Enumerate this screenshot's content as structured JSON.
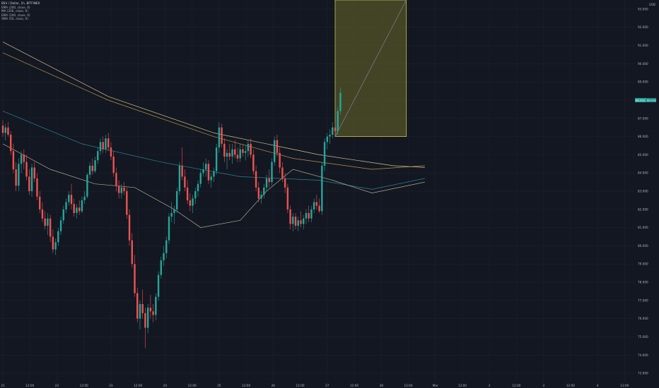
{
  "symbol_title": "BSV / Dollar, 1h, BITFINEX",
  "indicators": [
    "EMA (200, close, 0)",
    "MA (200, close, 0)",
    "EMA (100, close, 0)",
    "SMA (50, close, 0)"
  ],
  "currency": "USD",
  "price_tag_a": "88.002",
  "price_tag_b": "88.002",
  "colors": {
    "background": "#131722",
    "up": "#26a69a",
    "down": "#ef5350",
    "ema200": "#f2e1a0",
    "ma200": "#d4a84a",
    "ema100": "#2e9ba8",
    "sma50": "#c9c3a3",
    "box_fill": "#6b6a2a",
    "box_stroke": "#c7c24a"
  },
  "chart_data": {
    "type": "candlestick",
    "title": "",
    "xlabel": "",
    "ylabel": "",
    "ylim": [
      72.5,
      93.5
    ],
    "y_ticks": [
      "73.000",
      "74.000",
      "75.000",
      "76.000",
      "77.000",
      "78.000",
      "79.000",
      "80.000",
      "81.000",
      "82.000",
      "83.000",
      "84.000",
      "85.000",
      "86.000",
      "87.000",
      "88.000",
      "89.000",
      "90.000",
      "91.000",
      "92.000",
      "93.000"
    ],
    "x_ticks": [
      "21",
      "12:00",
      "22",
      "12:00",
      "23",
      "12:00",
      "24",
      "12:00",
      "25",
      "12:00",
      "26",
      "12:00",
      "27",
      "12:00",
      "28",
      "12:00",
      "Mar",
      "12:00",
      "2",
      "12:00",
      "3",
      "12:00",
      "4",
      "12:00"
    ],
    "grid": true,
    "candles": [
      [
        86.6,
        86.9,
        86.0,
        86.2
      ],
      [
        86.2,
        86.7,
        85.8,
        86.5
      ],
      [
        86.5,
        86.8,
        86.0,
        86.1
      ],
      [
        86.1,
        86.3,
        85.0,
        85.2
      ],
      [
        85.2,
        85.6,
        84.0,
        84.2
      ],
      [
        84.2,
        84.6,
        83.0,
        83.3
      ],
      [
        83.3,
        84.8,
        83.0,
        84.5
      ],
      [
        84.5,
        85.2,
        84.0,
        85.0
      ],
      [
        85.0,
        85.3,
        84.2,
        84.6
      ],
      [
        84.6,
        85.0,
        83.6,
        83.8
      ],
      [
        83.8,
        84.2,
        82.8,
        83.0
      ],
      [
        83.0,
        84.5,
        82.7,
        84.3
      ],
      [
        84.3,
        84.6,
        83.5,
        83.7
      ],
      [
        83.7,
        84.0,
        82.5,
        82.7
      ],
      [
        82.7,
        83.0,
        81.8,
        82.0
      ],
      [
        82.0,
        82.4,
        81.3,
        81.5
      ],
      [
        81.5,
        81.9,
        80.9,
        81.1
      ],
      [
        81.1,
        81.8,
        80.6,
        81.5
      ],
      [
        81.5,
        81.7,
        80.2,
        80.5
      ],
      [
        80.5,
        80.9,
        79.6,
        79.8
      ],
      [
        79.8,
        80.4,
        79.5,
        80.2
      ],
      [
        80.2,
        81.0,
        80.0,
        80.8
      ],
      [
        80.8,
        81.6,
        80.6,
        81.4
      ],
      [
        81.4,
        82.2,
        81.2,
        82.0
      ],
      [
        82.0,
        82.6,
        81.8,
        82.4
      ],
      [
        82.4,
        83.0,
        82.2,
        82.8
      ],
      [
        82.8,
        83.4,
        82.0,
        82.3
      ],
      [
        82.3,
        82.6,
        81.6,
        81.8
      ],
      [
        81.8,
        82.3,
        81.5,
        82.1
      ],
      [
        82.1,
        82.5,
        81.7,
        81.9
      ],
      [
        81.9,
        82.7,
        81.8,
        82.5
      ],
      [
        82.5,
        83.0,
        82.3,
        82.7
      ],
      [
        82.7,
        84.0,
        82.6,
        83.9
      ],
      [
        83.9,
        84.6,
        83.7,
        84.4
      ],
      [
        84.4,
        84.8,
        83.9,
        84.1
      ],
      [
        84.1,
        84.9,
        84.0,
        84.7
      ],
      [
        84.7,
        85.4,
        84.5,
        85.2
      ],
      [
        85.2,
        85.9,
        85.0,
        85.7
      ],
      [
        85.7,
        86.0,
        85.1,
        85.3
      ],
      [
        85.3,
        86.1,
        85.1,
        85.9
      ],
      [
        85.9,
        86.2,
        85.2,
        85.4
      ],
      [
        85.4,
        85.7,
        84.7,
        84.9
      ],
      [
        84.9,
        85.2,
        83.8,
        84.0
      ],
      [
        84.0,
        84.3,
        83.0,
        83.3
      ],
      [
        83.3,
        83.6,
        82.6,
        82.9
      ],
      [
        82.9,
        83.4,
        82.6,
        83.2
      ],
      [
        83.2,
        83.5,
        82.8,
        83.0
      ],
      [
        83.0,
        83.2,
        81.5,
        81.7
      ],
      [
        81.7,
        82.0,
        80.0,
        80.3
      ],
      [
        80.3,
        80.7,
        78.8,
        79.0
      ],
      [
        79.0,
        79.5,
        77.2,
        77.4
      ],
      [
        77.4,
        77.7,
        75.8,
        76.0
      ],
      [
        76.0,
        77.0,
        75.4,
        76.8
      ],
      [
        76.8,
        77.6,
        76.0,
        76.3
      ],
      [
        76.3,
        76.6,
        74.4,
        75.5
      ],
      [
        75.5,
        76.8,
        75.2,
        76.6
      ],
      [
        76.6,
        77.3,
        76.0,
        76.4
      ],
      [
        76.4,
        76.8,
        75.8,
        76.2
      ],
      [
        76.2,
        77.4,
        75.9,
        77.2
      ],
      [
        77.2,
        78.6,
        77.0,
        78.4
      ],
      [
        78.4,
        79.4,
        78.2,
        79.2
      ],
      [
        79.2,
        80.0,
        78.9,
        79.6
      ],
      [
        79.6,
        80.5,
        79.3,
        80.3
      ],
      [
        80.3,
        81.8,
        80.1,
        81.6
      ],
      [
        81.6,
        82.4,
        81.3,
        81.8
      ],
      [
        81.8,
        82.2,
        81.2,
        82.0
      ],
      [
        82.0,
        83.2,
        81.8,
        83.0
      ],
      [
        83.0,
        84.6,
        82.8,
        84.4
      ],
      [
        84.4,
        85.4,
        83.6,
        83.8
      ],
      [
        83.8,
        84.2,
        83.0,
        83.2
      ],
      [
        83.2,
        83.6,
        82.3,
        82.5
      ],
      [
        82.5,
        82.9,
        81.9,
        82.2
      ],
      [
        82.2,
        82.8,
        81.8,
        82.6
      ],
      [
        82.6,
        83.2,
        82.3,
        83.0
      ],
      [
        83.0,
        83.6,
        82.7,
        83.4
      ],
      [
        83.4,
        84.2,
        83.2,
        84.0
      ],
      [
        84.0,
        84.6,
        83.8,
        84.2
      ],
      [
        84.2,
        84.8,
        83.8,
        84.5
      ],
      [
        84.5,
        84.7,
        83.4,
        83.6
      ],
      [
        83.6,
        84.0,
        83.2,
        83.8
      ],
      [
        83.8,
        84.3,
        83.5,
        84.1
      ],
      [
        84.1,
        85.6,
        83.9,
        85.4
      ],
      [
        85.4,
        86.8,
        85.1,
        86.5
      ],
      [
        86.5,
        86.7,
        85.4,
        85.6
      ],
      [
        85.6,
        85.9,
        84.6,
        84.9
      ],
      [
        84.9,
        85.3,
        84.2,
        85.1
      ],
      [
        85.1,
        85.6,
        84.7,
        84.9
      ],
      [
        84.9,
        85.6,
        84.5,
        85.3
      ],
      [
        85.3,
        85.8,
        84.8,
        85.0
      ],
      [
        85.0,
        85.4,
        84.6,
        84.8
      ],
      [
        84.8,
        85.6,
        84.6,
        85.3
      ],
      [
        85.3,
        85.6,
        84.9,
        85.1
      ],
      [
        85.1,
        85.5,
        84.7,
        85.2
      ],
      [
        85.2,
        85.8,
        84.9,
        85.6
      ],
      [
        85.6,
        85.9,
        84.8,
        85.0
      ],
      [
        85.0,
        85.3,
        83.9,
        84.1
      ],
      [
        84.1,
        84.4,
        83.0,
        83.2
      ],
      [
        83.2,
        83.5,
        82.4,
        82.6
      ],
      [
        82.6,
        83.0,
        82.3,
        82.8
      ],
      [
        82.8,
        83.4,
        82.6,
        83.2
      ],
      [
        83.2,
        83.9,
        83.0,
        83.7
      ],
      [
        83.7,
        84.2,
        83.2,
        83.5
      ],
      [
        83.5,
        84.8,
        83.3,
        84.6
      ],
      [
        84.6,
        86.0,
        84.4,
        85.8
      ],
      [
        85.8,
        86.1,
        84.9,
        85.1
      ],
      [
        85.1,
        85.4,
        84.0,
        84.3
      ],
      [
        84.3,
        84.6,
        83.5,
        83.7
      ],
      [
        83.7,
        84.0,
        82.9,
        83.2
      ],
      [
        83.2,
        83.4,
        81.8,
        82.0
      ],
      [
        82.0,
        82.2,
        80.9,
        81.2
      ],
      [
        81.2,
        81.8,
        80.8,
        81.6
      ],
      [
        81.6,
        81.8,
        80.9,
        81.1
      ],
      [
        81.1,
        81.6,
        80.8,
        81.4
      ],
      [
        81.4,
        81.9,
        81.0,
        81.2
      ],
      [
        81.2,
        81.7,
        80.9,
        81.5
      ],
      [
        81.5,
        82.0,
        81.2,
        81.8
      ],
      [
        81.8,
        82.2,
        81.3,
        81.5
      ],
      [
        81.5,
        82.2,
        81.3,
        82.0
      ],
      [
        82.0,
        82.6,
        81.8,
        82.4
      ],
      [
        82.4,
        82.8,
        82.0,
        82.2
      ],
      [
        82.2,
        82.6,
        81.8,
        81.9
      ],
      [
        81.9,
        84.6,
        81.7,
        84.4
      ],
      [
        84.4,
        85.9,
        84.1,
        85.7
      ],
      [
        85.7,
        86.2,
        85.3,
        86.0
      ],
      [
        86.0,
        86.4,
        85.6,
        86.1
      ],
      [
        86.1,
        86.8,
        85.9,
        86.5
      ],
      [
        86.5,
        86.7,
        86.0,
        86.3
      ],
      [
        86.3,
        87.6,
        86.1,
        87.4
      ],
      [
        87.4,
        88.7,
        87.2,
        88.4
      ]
    ],
    "series": [
      {
        "values": [
          [
            0,
            91.2
          ],
          [
            40,
            88.2
          ],
          [
            80,
            86.2
          ],
          [
            120,
            85.0
          ],
          [
            148,
            84.4
          ],
          [
            160,
            84.3
          ]
        ]
      },
      {
        "values": [
          [
            0,
            90.6
          ],
          [
            40,
            88.0
          ],
          [
            80,
            86.0
          ],
          [
            110,
            84.8
          ],
          [
            140,
            84.2
          ],
          [
            160,
            84.4
          ]
        ]
      },
      {
        "values": [
          [
            0,
            87.4
          ],
          [
            30,
            85.6
          ],
          [
            60,
            84.6
          ],
          [
            90,
            83.8
          ],
          [
            120,
            83.6
          ],
          [
            140,
            83.1
          ],
          [
            160,
            83.7
          ]
        ]
      },
      {
        "values": [
          [
            0,
            85.6
          ],
          [
            18,
            84.2
          ],
          [
            35,
            83.4
          ],
          [
            50,
            83.2
          ],
          [
            65,
            82.0
          ],
          [
            75,
            81.0
          ],
          [
            90,
            81.4
          ],
          [
            100,
            83.0
          ],
          [
            110,
            84.2
          ],
          [
            125,
            83.6
          ],
          [
            140,
            82.9
          ],
          [
            160,
            83.5
          ]
        ]
      }
    ],
    "box": {
      "x0": 126,
      "x1": 153,
      "y0": 86.0,
      "y1": 93.5
    }
  }
}
